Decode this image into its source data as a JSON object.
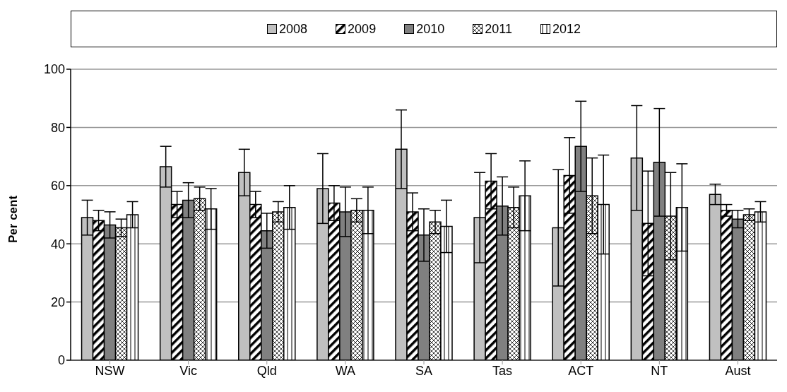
{
  "chart_data": {
    "type": "bar",
    "ylabel": "Per cent",
    "categories": [
      "NSW",
      "Vic",
      "Qld",
      "WA",
      "SA",
      "Tas",
      "ACT",
      "NT",
      "Aust"
    ],
    "ylim": [
      0,
      100
    ],
    "yticks": [
      0,
      20,
      40,
      60,
      80,
      100
    ],
    "grid": "y",
    "legend": "top",
    "series": [
      {
        "name": "2008",
        "color": "#c0c0c0",
        "values": [
          49,
          66.5,
          64.5,
          59,
          72.5,
          49,
          45.5,
          69.5,
          57
        ],
        "errors": [
          6,
          7,
          8,
          12,
          13.5,
          15.5,
          20,
          18,
          3.5
        ]
      },
      {
        "name": "2009",
        "color": "#000000",
        "values": [
          48,
          53.5,
          53.5,
          54,
          51,
          61.5,
          63.5,
          47,
          51.5
        ],
        "errors": [
          3.5,
          4.5,
          4.5,
          6,
          6.5,
          9.5,
          13,
          18,
          2
        ]
      },
      {
        "name": "2010",
        "color": "#808080",
        "values": [
          46.5,
          55,
          44.5,
          51,
          43,
          53,
          73.5,
          68,
          48.5
        ],
        "errors": [
          4.5,
          6,
          6,
          8.5,
          9,
          10,
          15.5,
          18.5,
          3
        ]
      },
      {
        "name": "2011",
        "color": "#000000",
        "values": [
          45.5,
          55.5,
          51,
          51.5,
          47.5,
          52.5,
          56.5,
          49.5,
          50
        ],
        "errors": [
          3,
          4,
          3.5,
          4,
          4,
          7,
          13,
          15,
          2
        ]
      },
      {
        "name": "2012",
        "color": "#000000",
        "values": [
          50,
          52,
          52.5,
          51.5,
          46,
          56.5,
          53.5,
          52.5,
          51
        ],
        "errors": [
          4.5,
          7,
          7.5,
          8,
          9,
          12,
          17,
          15,
          3.5
        ]
      }
    ]
  }
}
